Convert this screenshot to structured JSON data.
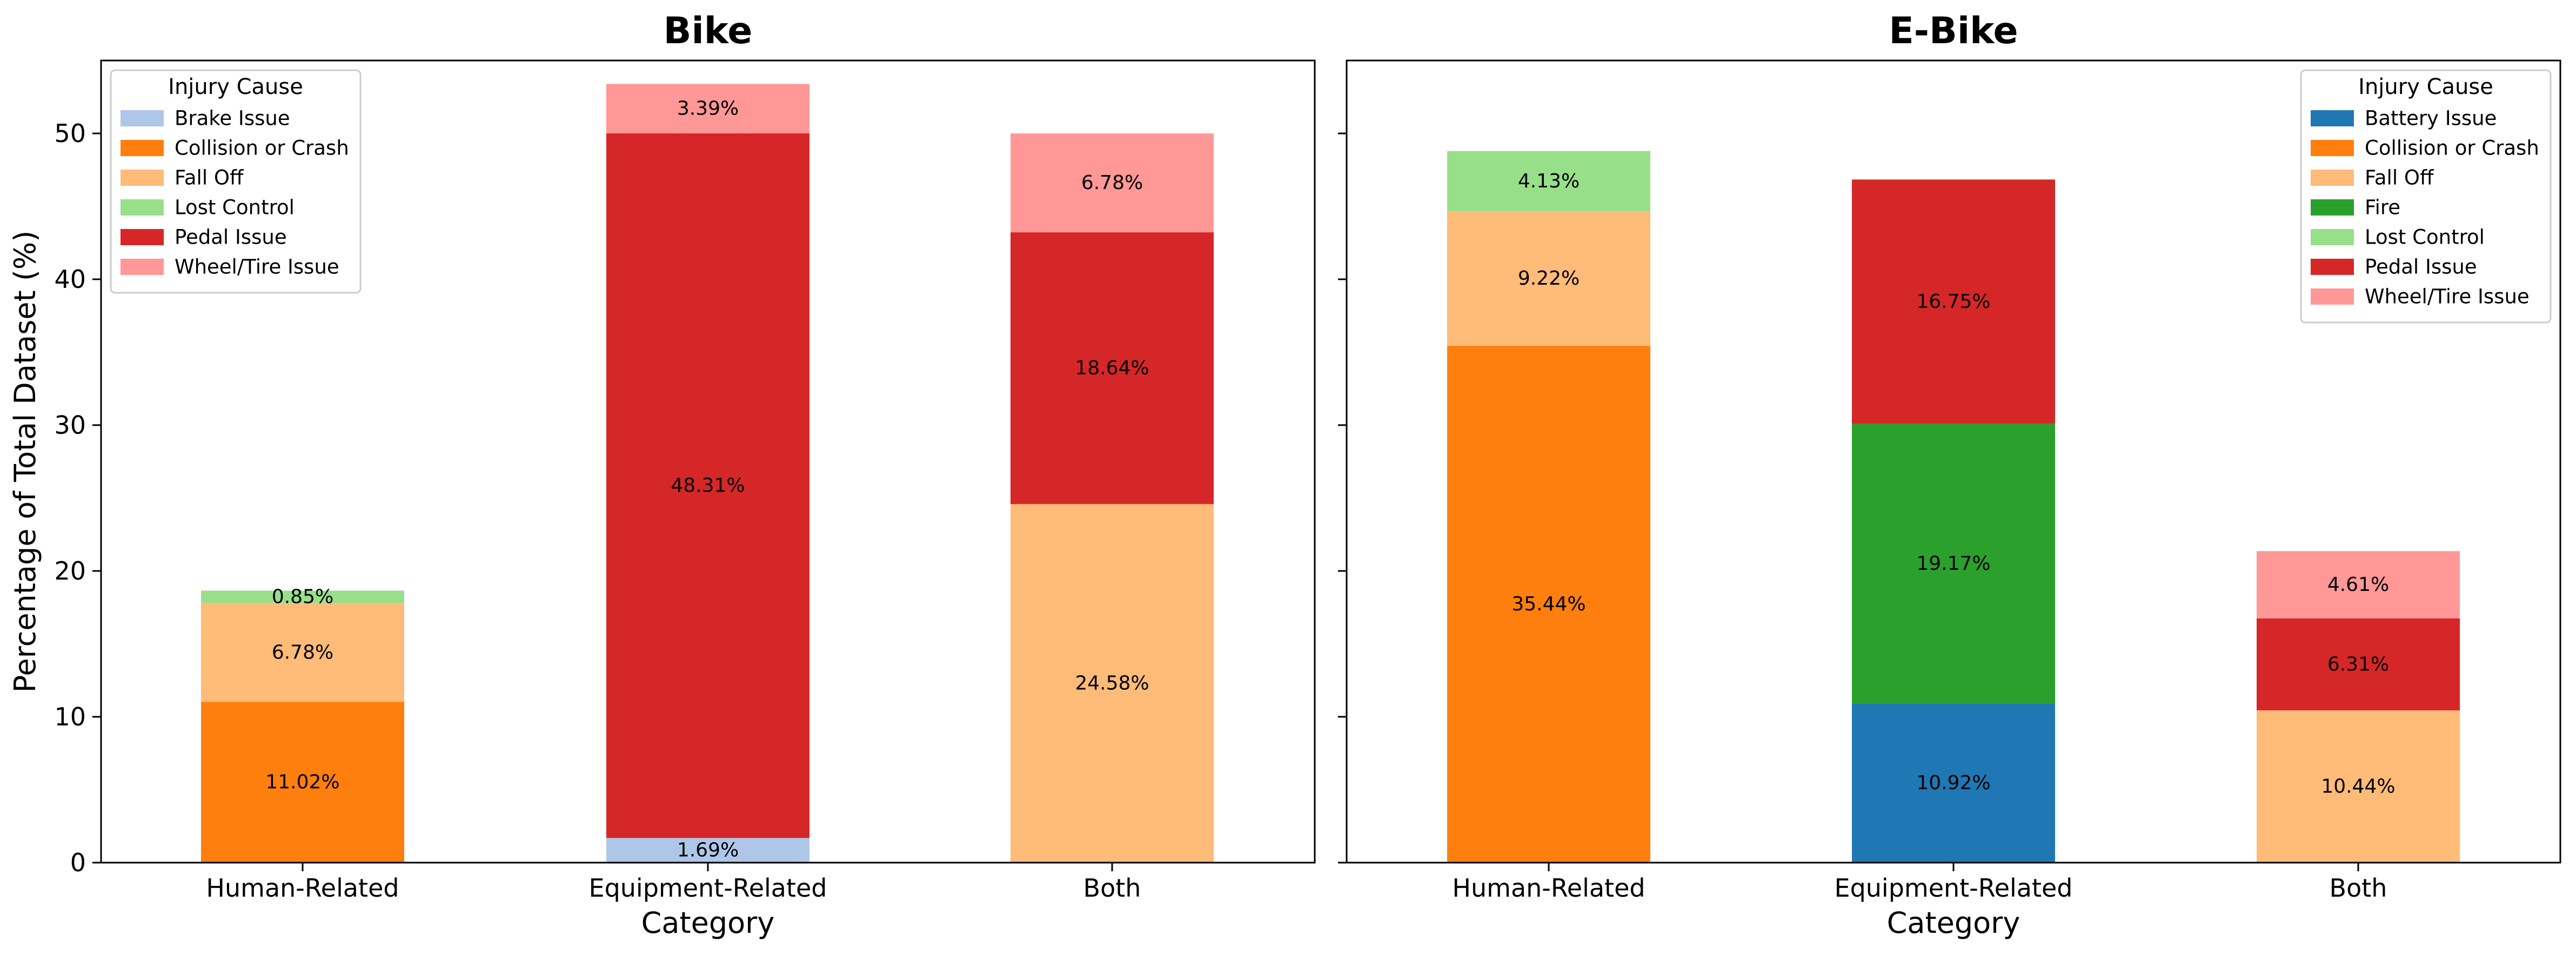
{
  "chart_data": [
    {
      "type": "bar",
      "stacked": true,
      "title": "Bike",
      "xlabel": "Category",
      "ylabel": "Percentage of Total Dataset (%)",
      "ylim": [
        0,
        55
      ],
      "yticks": [
        0,
        10,
        20,
        30,
        40,
        50
      ],
      "categories": [
        "Human-Related",
        "Equipment-Related",
        "Both"
      ],
      "legend": {
        "title": "Injury Cause",
        "position": "top-left",
        "entries": [
          "Brake Issue",
          "Collision or Crash",
          "Fall Off",
          "Lost Control",
          "Pedal Issue",
          "Wheel/Tire Issue"
        ]
      },
      "series": [
        {
          "name": "Brake Issue",
          "color": "#aec7e8",
          "values": [
            0,
            1.69,
            0
          ]
        },
        {
          "name": "Collision or Crash",
          "color": "#ff7f0e",
          "values": [
            11.02,
            0,
            0
          ]
        },
        {
          "name": "Fall Off",
          "color": "#ffbb78",
          "values": [
            6.78,
            0,
            24.58
          ]
        },
        {
          "name": "Lost Control",
          "color": "#98df8a",
          "values": [
            0.85,
            0,
            0
          ]
        },
        {
          "name": "Pedal Issue",
          "color": "#d62728",
          "values": [
            0,
            48.31,
            18.64
          ]
        },
        {
          "name": "Wheel/Tire Issue",
          "color": "#ff9896",
          "values": [
            0,
            3.39,
            6.78
          ]
        }
      ]
    },
    {
      "type": "bar",
      "stacked": true,
      "title": "E-Bike",
      "xlabel": "Category",
      "ylabel": "",
      "ylim": [
        0,
        55
      ],
      "yticks": [
        0,
        10,
        20,
        30,
        40,
        50
      ],
      "categories": [
        "Human-Related",
        "Equipment-Related",
        "Both"
      ],
      "legend": {
        "title": "Injury Cause",
        "position": "top-right",
        "entries": [
          "Battery Issue",
          "Collision or Crash",
          "Fall Off",
          "Fire",
          "Lost Control",
          "Pedal Issue",
          "Wheel/Tire Issue"
        ]
      },
      "series": [
        {
          "name": "Battery Issue",
          "color": "#1f77b4",
          "values": [
            0,
            10.92,
            0
          ]
        },
        {
          "name": "Collision or Crash",
          "color": "#ff7f0e",
          "values": [
            35.44,
            0,
            0
          ]
        },
        {
          "name": "Fall Off",
          "color": "#ffbb78",
          "values": [
            9.22,
            0,
            10.44
          ]
        },
        {
          "name": "Fire",
          "color": "#2ca02c",
          "values": [
            0,
            19.17,
            0
          ]
        },
        {
          "name": "Lost Control",
          "color": "#98df8a",
          "values": [
            4.13,
            0,
            0
          ]
        },
        {
          "name": "Pedal Issue",
          "color": "#d62728",
          "values": [
            0,
            16.75,
            6.31
          ]
        },
        {
          "name": "Wheel/Tire Issue",
          "color": "#ff9896",
          "values": [
            0,
            0,
            4.61
          ]
        }
      ]
    }
  ]
}
